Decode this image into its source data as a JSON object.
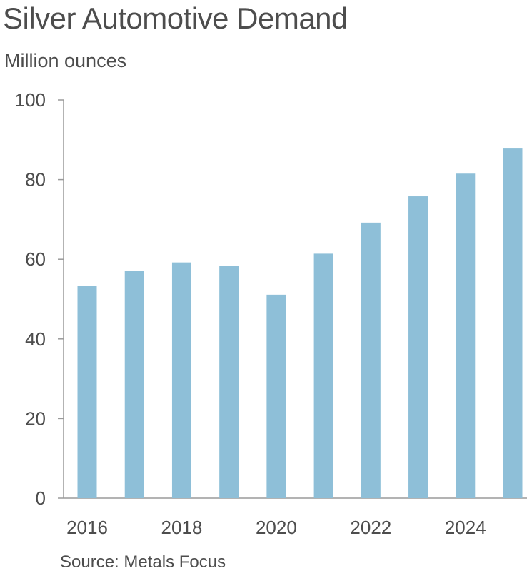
{
  "chart_data": {
    "type": "bar",
    "title": "Silver Automotive Demand",
    "subtitle": "Million ounces",
    "source": "Source: Metals Focus",
    "categories": [
      "2016",
      "2017",
      "2018",
      "2019",
      "2020",
      "2021",
      "2022",
      "2023",
      "2024",
      "2025"
    ],
    "values": [
      53.3,
      57.0,
      59.2,
      58.4,
      51.1,
      61.4,
      69.2,
      75.8,
      81.5,
      87.8
    ],
    "x_tick_labels": [
      "2016",
      "2018",
      "2020",
      "2022",
      "2024"
    ],
    "y_ticks": [
      "0",
      "20",
      "40",
      "60",
      "80",
      "100"
    ],
    "ylim": [
      0,
      100
    ],
    "xlabel": "",
    "ylabel": "",
    "grid": false,
    "legend": "none",
    "bar_color": "#8ebfd8",
    "axis_color": "#9a9a9a"
  }
}
